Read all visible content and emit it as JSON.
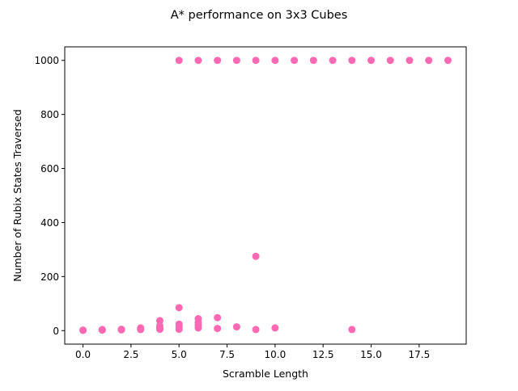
{
  "chart_data": {
    "type": "scatter",
    "title": "A* performance on 3x3 Cubes",
    "xlabel": "Scramble Length",
    "ylabel": "Number of Rubix States Traversed",
    "xlim": [
      -0.95,
      19.95
    ],
    "ylim": [
      -50,
      1050
    ],
    "xticks": [
      0.0,
      2.5,
      5.0,
      7.5,
      10.0,
      12.5,
      15.0,
      17.5
    ],
    "xtick_labels": [
      "0.0",
      "2.5",
      "5.0",
      "7.5",
      "10.0",
      "12.5",
      "15.0",
      "17.5"
    ],
    "yticks": [
      0,
      200,
      400,
      600,
      800,
      1000
    ],
    "ytick_labels": [
      "0",
      "200",
      "400",
      "600",
      "800",
      "1000"
    ],
    "grid": false,
    "marker_color": "#ff69b4",
    "points": [
      {
        "x": 0,
        "y": 1
      },
      {
        "x": 0,
        "y": 2
      },
      {
        "x": 1,
        "y": 2
      },
      {
        "x": 1,
        "y": 3
      },
      {
        "x": 1,
        "y": 4
      },
      {
        "x": 2,
        "y": 3
      },
      {
        "x": 2,
        "y": 4
      },
      {
        "x": 2,
        "y": 5
      },
      {
        "x": 3,
        "y": 4
      },
      {
        "x": 3,
        "y": 7
      },
      {
        "x": 3,
        "y": 10
      },
      {
        "x": 4,
        "y": 5
      },
      {
        "x": 4,
        "y": 10
      },
      {
        "x": 4,
        "y": 18
      },
      {
        "x": 4,
        "y": 37
      },
      {
        "x": 5,
        "y": 5
      },
      {
        "x": 5,
        "y": 15
      },
      {
        "x": 5,
        "y": 24
      },
      {
        "x": 5,
        "y": 85
      },
      {
        "x": 5,
        "y": 1000
      },
      {
        "x": 6,
        "y": 10
      },
      {
        "x": 6,
        "y": 20
      },
      {
        "x": 6,
        "y": 30
      },
      {
        "x": 6,
        "y": 44
      },
      {
        "x": 6,
        "y": 1000
      },
      {
        "x": 7,
        "y": 8
      },
      {
        "x": 7,
        "y": 48
      },
      {
        "x": 7,
        "y": 1000
      },
      {
        "x": 8,
        "y": 14
      },
      {
        "x": 8,
        "y": 1000
      },
      {
        "x": 9,
        "y": 4
      },
      {
        "x": 9,
        "y": 275
      },
      {
        "x": 9,
        "y": 1000
      },
      {
        "x": 10,
        "y": 10
      },
      {
        "x": 10,
        "y": 1000
      },
      {
        "x": 11,
        "y": 1000
      },
      {
        "x": 12,
        "y": 1000
      },
      {
        "x": 13,
        "y": 1000
      },
      {
        "x": 14,
        "y": 4
      },
      {
        "x": 14,
        "y": 1000
      },
      {
        "x": 15,
        "y": 1000
      },
      {
        "x": 16,
        "y": 1000
      },
      {
        "x": 17,
        "y": 1000
      },
      {
        "x": 18,
        "y": 1000
      },
      {
        "x": 19,
        "y": 1000
      }
    ]
  }
}
